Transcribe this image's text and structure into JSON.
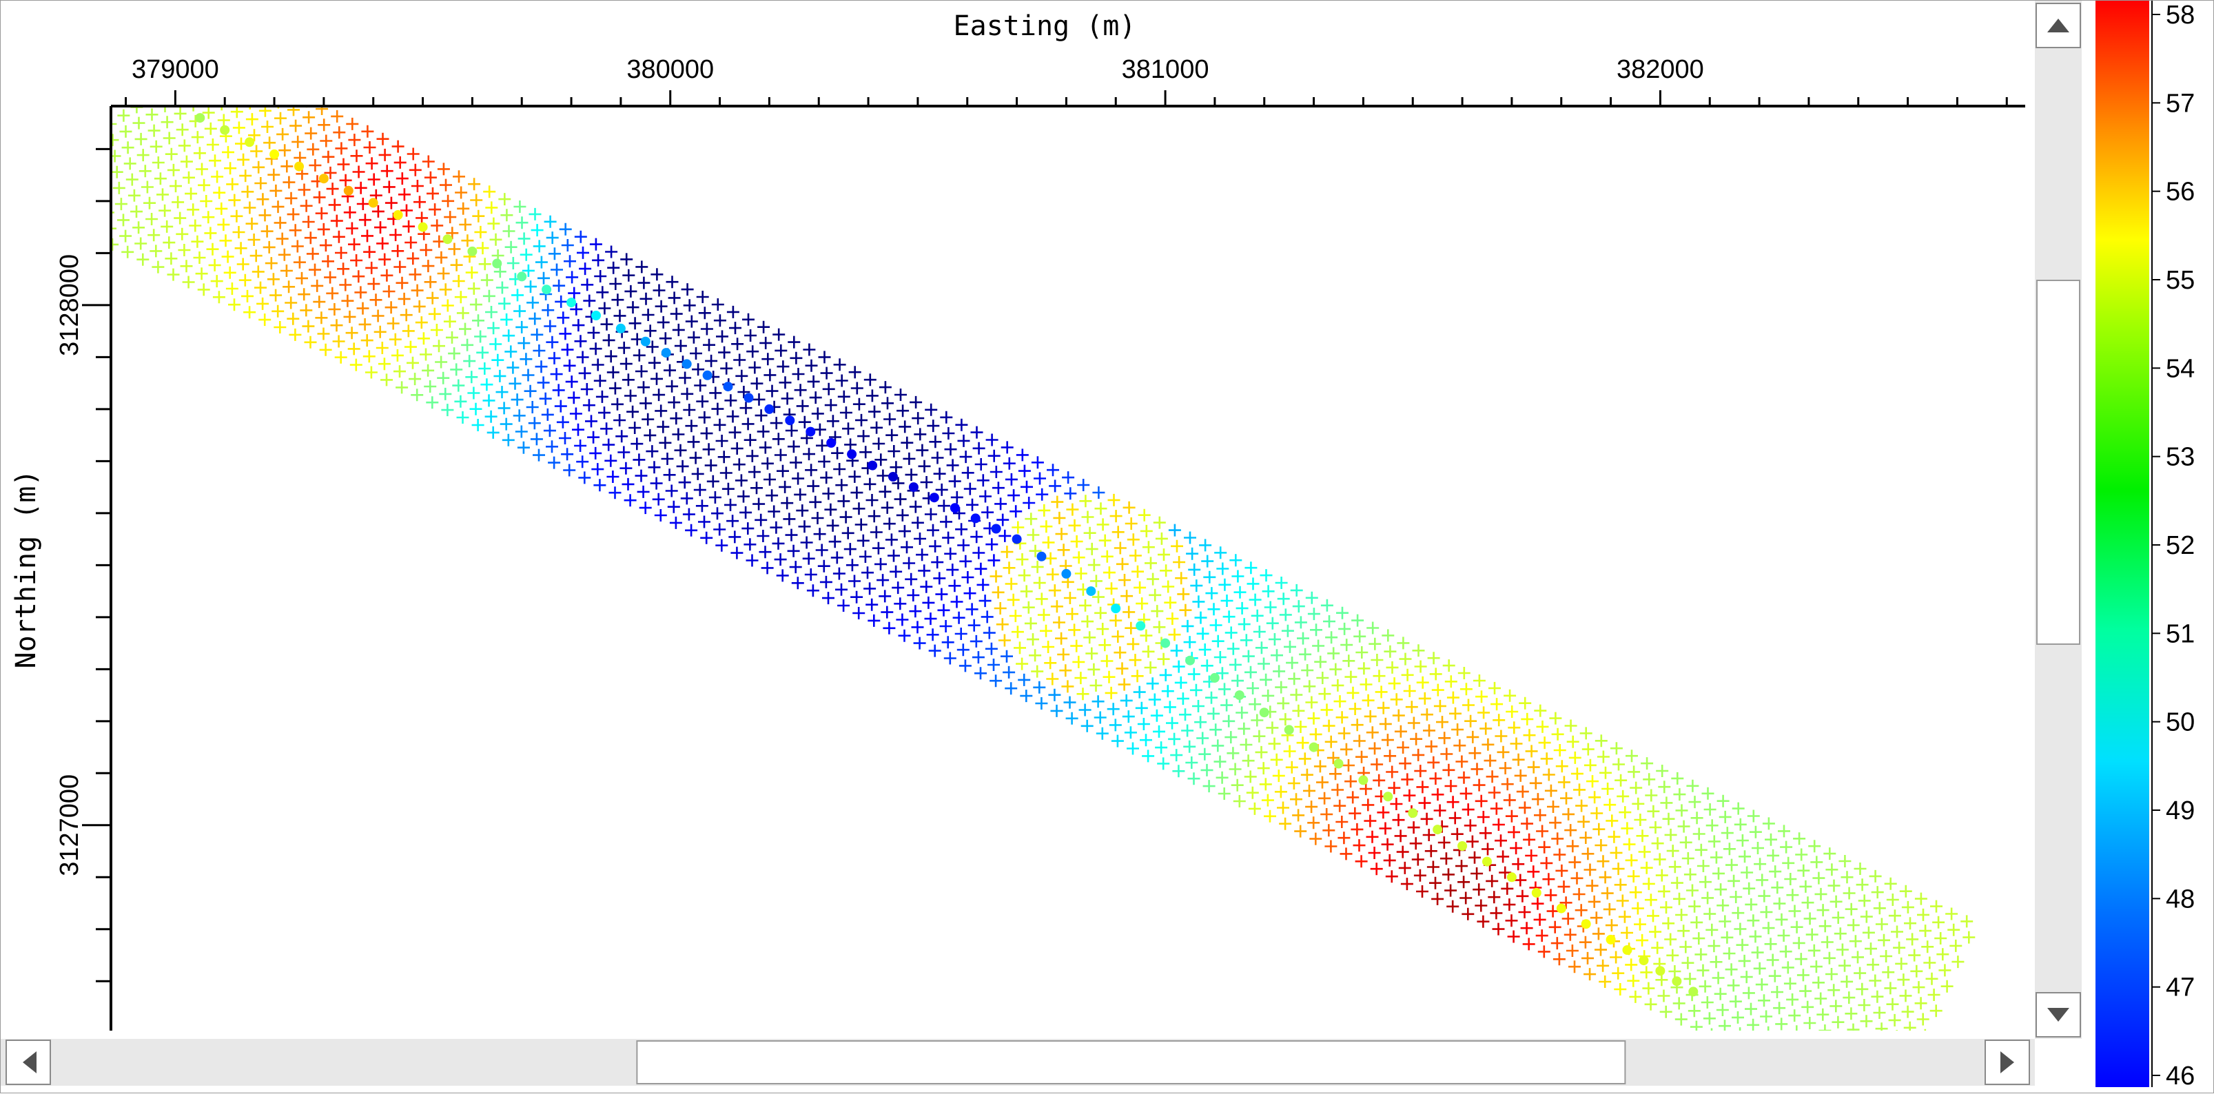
{
  "chart_data": {
    "type": "scatter",
    "xlabel": "Easting (m)",
    "ylabel": "Northing (m)",
    "xlim": [
      378870,
      382740
    ],
    "ylim": [
      3126605,
      3128380
    ],
    "x_ticks": [
      379000,
      380000,
      381000,
      382000
    ],
    "y_ticks": [
      3127000,
      3128000
    ],
    "x_tick_labels": [
      "379000",
      "380000",
      "381000",
      "382000"
    ],
    "y_tick_labels": [
      "3127000",
      "3128000"
    ],
    "colorbar": {
      "min": 46,
      "max": 58,
      "ticks": [
        46,
        47,
        48,
        49,
        50,
        51,
        52,
        53,
        54,
        55,
        56,
        57,
        58
      ],
      "tick_labels": [
        "46",
        "47",
        "48",
        "49",
        "50",
        "51",
        "52",
        "53",
        "54",
        "55",
        "56",
        "57",
        "58"
      ],
      "colormap": "jet"
    },
    "swath": {
      "start": [
        378870,
        3128350
      ],
      "end": [
        382550,
        3126620
      ],
      "half_width_m": 210,
      "line_spacing_m": 26,
      "point_spacing_m": 34
    },
    "anomalies": [
      {
        "x": 379470,
        "y": 3128180,
        "value": 57.5,
        "radius_m": 230
      },
      {
        "x": 379950,
        "y": 3128020,
        "value": 46.5,
        "radius_m": 260
      },
      {
        "x": 380400,
        "y": 3127700,
        "value": 47.5,
        "radius_m": 330
      },
      {
        "x": 381450,
        "y": 3126990,
        "value": 56.5,
        "radius_m": 250
      },
      {
        "x": 381700,
        "y": 3126800,
        "value": 55.0,
        "radius_m": 200
      }
    ],
    "receiver_line": [
      {
        "x": 379050,
        "y": 3128360,
        "value": 52.5
      },
      {
        "x": 379350,
        "y": 3128220,
        "value": 54.5
      },
      {
        "x": 379650,
        "y": 3128080,
        "value": 52.0
      },
      {
        "x": 379950,
        "y": 3127930,
        "value": 49.5
      },
      {
        "x": 380200,
        "y": 3127800,
        "value": 48.0
      },
      {
        "x": 380450,
        "y": 3127670,
        "value": 47.0
      },
      {
        "x": 380700,
        "y": 3127550,
        "value": 48.0
      },
      {
        "x": 381000,
        "y": 3127350,
        "value": 51.5
      },
      {
        "x": 381300,
        "y": 3127150,
        "value": 52.5
      },
      {
        "x": 381600,
        "y": 3126960,
        "value": 53.0
      },
      {
        "x": 381900,
        "y": 3126780,
        "value": 53.5
      },
      {
        "x": 382100,
        "y": 3126660,
        "value": 52.5
      }
    ],
    "patch": {
      "x": 380850,
      "y": 3127440,
      "radius_m": 200,
      "value": 53.5
    }
  },
  "scrollbars": {
    "vertical": {
      "position": 0.4
    },
    "horizontal": {
      "position": 0.62
    }
  },
  "colors": {
    "frame": "#9a9a9a",
    "axis": "#000000",
    "scroll_track": "#e8e8e8"
  }
}
